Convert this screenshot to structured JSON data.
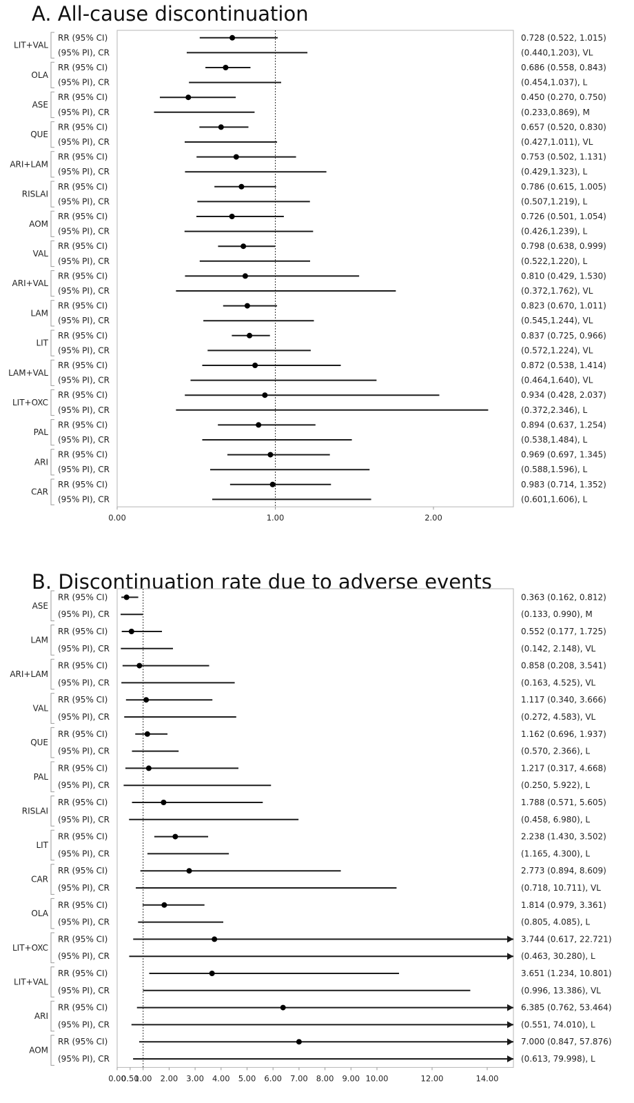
{
  "chart_data": [
    {
      "type": "forest",
      "title": "A. All-cause discontinuation",
      "row_labels": {
        "ci": "RR (95% CI)",
        "pi": "(95% PI), CR"
      },
      "xticks": [
        0,
        1,
        2
      ],
      "xtick_labels": [
        "0.00",
        "1.00",
        "2.00"
      ],
      "xlim": [
        0,
        2.5
      ],
      "reference_line": 1,
      "groups": [
        {
          "name": "LIT+VAL",
          "rr": 0.728,
          "ci": [
            0.522,
            1.015
          ],
          "pi": [
            0.44,
            1.203
          ],
          "ci_text": "0.728 (0.522, 1.015)",
          "pi_text": "(0.440,1.203), VL"
        },
        {
          "name": "OLA",
          "rr": 0.686,
          "ci": [
            0.558,
            0.843
          ],
          "pi": [
            0.454,
            1.037
          ],
          "ci_text": "0.686 (0.558, 0.843)",
          "pi_text": "(0.454,1.037), L"
        },
        {
          "name": "ASE",
          "rr": 0.45,
          "ci": [
            0.27,
            0.75
          ],
          "pi": [
            0.233,
            0.869
          ],
          "ci_text": "0.450 (0.270, 0.750)",
          "pi_text": "(0.233,0.869), M"
        },
        {
          "name": "QUE",
          "rr": 0.657,
          "ci": [
            0.52,
            0.83
          ],
          "pi": [
            0.427,
            1.011
          ],
          "ci_text": "0.657 (0.520, 0.830)",
          "pi_text": "(0.427,1.011), VL"
        },
        {
          "name": "ARI+LAM",
          "rr": 0.753,
          "ci": [
            0.502,
            1.131
          ],
          "pi": [
            0.429,
            1.323
          ],
          "ci_text": "0.753 (0.502, 1.131)",
          "pi_text": "(0.429,1.323), L"
        },
        {
          "name": "RISLAI",
          "rr": 0.786,
          "ci": [
            0.615,
            1.005
          ],
          "pi": [
            0.507,
            1.219
          ],
          "ci_text": "0.786 (0.615, 1.005)",
          "pi_text": "(0.507,1.219), L"
        },
        {
          "name": "AOM",
          "rr": 0.726,
          "ci": [
            0.501,
            1.054
          ],
          "pi": [
            0.426,
            1.239
          ],
          "ci_text": "0.726 (0.501, 1.054)",
          "pi_text": "(0.426,1.239), L"
        },
        {
          "name": "VAL",
          "rr": 0.798,
          "ci": [
            0.638,
            0.999
          ],
          "pi": [
            0.522,
            1.22
          ],
          "ci_text": "0.798 (0.638, 0.999)",
          "pi_text": "(0.522,1.220), L"
        },
        {
          "name": "ARI+VAL",
          "rr": 0.81,
          "ci": [
            0.429,
            1.53
          ],
          "pi": [
            0.372,
            1.762
          ],
          "ci_text": "0.810 (0.429, 1.530)",
          "pi_text": "(0.372,1.762), VL"
        },
        {
          "name": "LAM",
          "rr": 0.823,
          "ci": [
            0.67,
            1.011
          ],
          "pi": [
            0.545,
            1.244
          ],
          "ci_text": "0.823 (0.670, 1.011)",
          "pi_text": "(0.545,1.244), VL"
        },
        {
          "name": "LIT",
          "rr": 0.837,
          "ci": [
            0.725,
            0.966
          ],
          "pi": [
            0.572,
            1.224
          ],
          "ci_text": "0.837 (0.725, 0.966)",
          "pi_text": "(0.572,1.224), VL"
        },
        {
          "name": "LAM+VAL",
          "rr": 0.872,
          "ci": [
            0.538,
            1.414
          ],
          "pi": [
            0.464,
            1.64
          ],
          "ci_text": "0.872 (0.538, 1.414)",
          "pi_text": "(0.464,1.640), VL"
        },
        {
          "name": "LIT+OXC",
          "rr": 0.934,
          "ci": [
            0.428,
            2.037
          ],
          "pi": [
            0.372,
            2.346
          ],
          "ci_text": "0.934 (0.428, 2.037)",
          "pi_text": "(0.372,2.346), L"
        },
        {
          "name": "PAL",
          "rr": 0.894,
          "ci": [
            0.637,
            1.254
          ],
          "pi": [
            0.538,
            1.484
          ],
          "ci_text": "0.894 (0.637, 1.254)",
          "pi_text": "(0.538,1.484), L"
        },
        {
          "name": "ARI",
          "rr": 0.969,
          "ci": [
            0.697,
            1.345
          ],
          "pi": [
            0.588,
            1.596
          ],
          "ci_text": "0.969 (0.697, 1.345)",
          "pi_text": "(0.588,1.596), L"
        },
        {
          "name": "CAR",
          "rr": 0.983,
          "ci": [
            0.714,
            1.352
          ],
          "pi": [
            0.601,
            1.606
          ],
          "ci_text": "0.983 (0.714, 1.352)",
          "pi_text": "(0.601,1.606), L"
        }
      ]
    },
    {
      "type": "forest",
      "title": "B. Discontinuation rate due to adverse events",
      "row_labels": {
        "ci": "RR (95% CI)",
        "pi": "(95% PI), CR"
      },
      "xticks": [
        0,
        0.5,
        1,
        2,
        3,
        4,
        5,
        6,
        7,
        8,
        9,
        10,
        12,
        14
      ],
      "xtick_labels": [
        "0.00",
        "0.50",
        "1.00",
        "2.00",
        "3.00",
        "4.00",
        "5.00",
        "6.00",
        "7.00",
        "8.00",
        "9.00",
        "10.00",
        "12.00",
        "14.00"
      ],
      "axis_break": [
        10,
        15
      ],
      "xlim": [
        0,
        15
      ],
      "reference_line": 1,
      "arrow_beyond": 15,
      "groups": [
        {
          "name": "ASE",
          "rr": 0.363,
          "ci": [
            0.162,
            0.812
          ],
          "pi": [
            0.133,
            0.99
          ],
          "ci_text": "0.363 (0.162, 0.812)",
          "pi_text": "(0.133, 0.990), M"
        },
        {
          "name": "LAM",
          "rr": 0.552,
          "ci": [
            0.177,
            1.725
          ],
          "pi": [
            0.142,
            2.148
          ],
          "ci_text": "0.552 (0.177, 1.725)",
          "pi_text": "(0.142, 2.148), VL"
        },
        {
          "name": "ARI+LAM",
          "rr": 0.858,
          "ci": [
            0.208,
            3.541
          ],
          "pi": [
            0.163,
            4.525
          ],
          "ci_text": "0.858 (0.208, 3.541)",
          "pi_text": "(0.163, 4.525), VL"
        },
        {
          "name": "VAL",
          "rr": 1.117,
          "ci": [
            0.34,
            3.666
          ],
          "pi": [
            0.272,
            4.583
          ],
          "ci_text": "1.117 (0.340, 3.666)",
          "pi_text": "(0.272, 4.583), VL"
        },
        {
          "name": "QUE",
          "rr": 1.162,
          "ci": [
            0.696,
            1.937
          ],
          "pi": [
            0.57,
            2.366
          ],
          "ci_text": "1.162 (0.696, 1.937)",
          "pi_text": "(0.570, 2.366), L"
        },
        {
          "name": "PAL",
          "rr": 1.217,
          "ci": [
            0.317,
            4.668
          ],
          "pi": [
            0.25,
            5.922
          ],
          "ci_text": "1.217 (0.317, 4.668)",
          "pi_text": "(0.250, 5.922), L"
        },
        {
          "name": "RISLAI",
          "rr": 1.788,
          "ci": [
            0.571,
            5.605
          ],
          "pi": [
            0.458,
            6.98
          ],
          "ci_text": "1.788 (0.571, 5.605)",
          "pi_text": "(0.458, 6.980), L"
        },
        {
          "name": "LIT",
          "rr": 2.238,
          "ci": [
            1.43,
            3.502
          ],
          "pi": [
            1.165,
            4.3
          ],
          "ci_text": "2.238 (1.430, 3.502)",
          "pi_text": "(1.165, 4.300), L"
        },
        {
          "name": "CAR",
          "rr": 2.773,
          "ci": [
            0.894,
            8.609
          ],
          "pi": [
            0.718,
            10.711
          ],
          "ci_text": "2.773 (0.894,  8.609)",
          "pi_text": "(0.718, 10.711), VL"
        },
        {
          "name": "OLA",
          "rr": 1.814,
          "ci": [
            0.979,
            3.361
          ],
          "pi": [
            0.805,
            4.085
          ],
          "ci_text": "1.814 (0.979, 3.361)",
          "pi_text": "(0.805, 4.085), L"
        },
        {
          "name": "LIT+OXC",
          "rr": 3.744,
          "ci": [
            0.617,
            22.721
          ],
          "pi": [
            0.463,
            30.28
          ],
          "ci_text": "3.744 (0.617, 22.721)",
          "pi_text": "(0.463, 30.280), L"
        },
        {
          "name": "LIT+VAL",
          "rr": 3.651,
          "ci": [
            1.234,
            10.801
          ],
          "pi": [
            0.996,
            13.386
          ],
          "ci_text": "3.651 (1.234, 10.801)",
          "pi_text": "(0.996, 13.386), VL"
        },
        {
          "name": "ARI",
          "rr": 6.385,
          "ci": [
            0.762,
            53.464
          ],
          "pi": [
            0.551,
            74.01
          ],
          "ci_text": "6.385 (0.762, 53.464)",
          "pi_text": "(0.551, 74.010), L"
        },
        {
          "name": "AOM",
          "rr": 7.0,
          "ci": [
            0.847,
            57.876
          ],
          "pi": [
            0.613,
            79.998
          ],
          "ci_text": "7.000 (0.847, 57.876)",
          "pi_text": "(0.613, 79.998), L"
        }
      ]
    }
  ]
}
